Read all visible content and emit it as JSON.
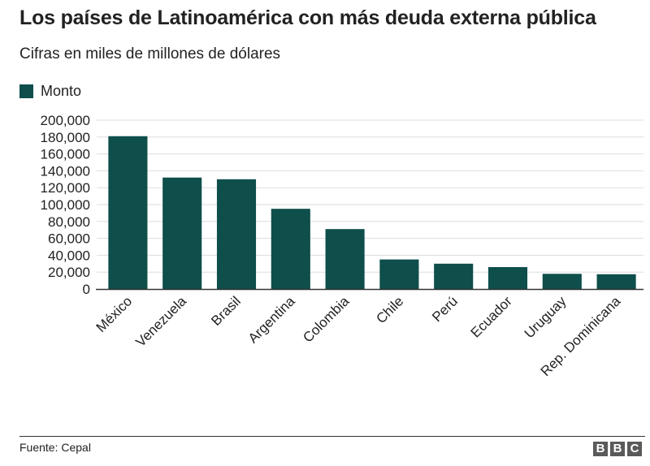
{
  "header": {
    "title": "Los países de Latinoamérica con más deuda externa pública",
    "subtitle": "Cifras en miles de millones de dólares"
  },
  "footer": {
    "source": "Fuente: Cepal",
    "logo_letters": [
      "B",
      "B",
      "C"
    ]
  },
  "colors": {
    "bar": "#0e4e4b",
    "grid": "#dddddd",
    "axis": "#333333"
  },
  "chart_data": {
    "type": "bar",
    "categories": [
      "México",
      "Venezuela",
      "Brasil",
      "Argentina",
      "Colombia",
      "Chile",
      "Perú",
      "Ecuador",
      "Uruguay",
      "Rep. Dominicana"
    ],
    "series": [
      {
        "name": "Monto",
        "values": [
          181000,
          132000,
          130000,
          95000,
          71000,
          35000,
          30000,
          26000,
          18000,
          17500
        ]
      }
    ],
    "ylim": [
      0,
      200000
    ],
    "yticks": [
      0,
      20000,
      40000,
      60000,
      80000,
      100000,
      120000,
      140000,
      160000,
      180000,
      200000
    ],
    "ytick_labels": [
      "0",
      "20,000",
      "40,000",
      "60,000",
      "80,000",
      "100,000",
      "120,000",
      "140,000",
      "160,000",
      "180,000",
      "200,000"
    ],
    "grid": true,
    "legend_position": "top-left"
  }
}
